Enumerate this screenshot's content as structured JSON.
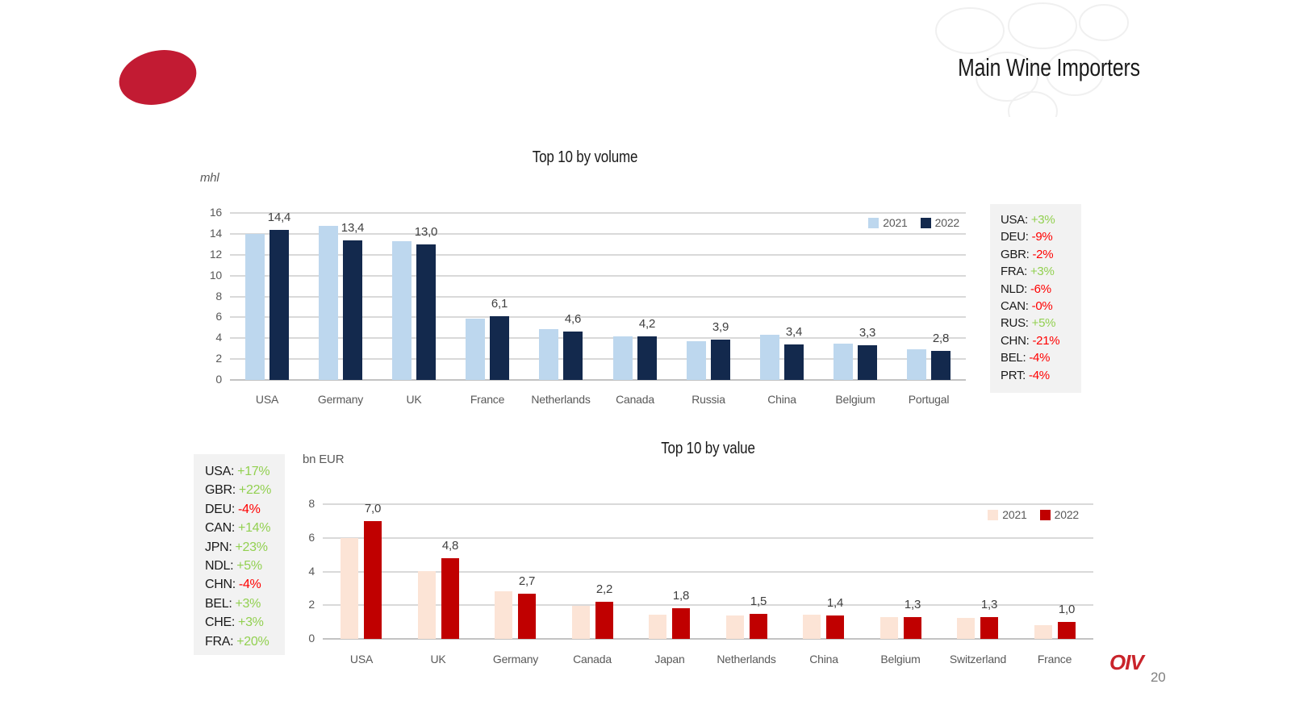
{
  "slide": {
    "title": "Main Wine Importers",
    "page_number": "20",
    "logo_text": "OIV"
  },
  "chart_data": [
    {
      "id": "volume",
      "type": "bar",
      "title": "Top 10 by volume",
      "unit_label": "mhl",
      "categories": [
        "USA",
        "Germany",
        "UK",
        "France",
        "Netherlands",
        "Canada",
        "Russia",
        "China",
        "Belgium",
        "Portugal"
      ],
      "series": [
        {
          "name": "2021",
          "color": "#bdd7ee",
          "values": [
            14.0,
            14.8,
            13.3,
            5.9,
            4.9,
            4.2,
            3.7,
            4.3,
            3.45,
            2.9
          ]
        },
        {
          "name": "2022",
          "color": "#13294d",
          "values": [
            14.4,
            13.4,
            13.0,
            6.1,
            4.6,
            4.2,
            3.9,
            3.4,
            3.3,
            2.8
          ]
        }
      ],
      "value_labels": [
        "14,4",
        "13,4",
        "13,0",
        "6,1",
        "4,6",
        "4,2",
        "3,9",
        "3,4",
        "3,3",
        "2,8"
      ],
      "ylim": [
        0,
        16
      ],
      "ytick_step": 2,
      "grid": true,
      "legend_position": "top-right"
    },
    {
      "id": "value",
      "type": "bar",
      "title": "Top 10 by value",
      "unit_label": "bn EUR",
      "categories": [
        "USA",
        "UK",
        "Germany",
        "Canada",
        "Japan",
        "Netherlands",
        "China",
        "Belgium",
        "Switzerland",
        "France"
      ],
      "series": [
        {
          "name": "2021",
          "color": "#fce4d6",
          "values": [
            6.0,
            4.0,
            2.85,
            1.95,
            1.45,
            1.4,
            1.45,
            1.3,
            1.25,
            0.8
          ]
        },
        {
          "name": "2022",
          "color": "#c00000",
          "values": [
            7.0,
            4.8,
            2.7,
            2.2,
            1.8,
            1.5,
            1.4,
            1.3,
            1.3,
            1.0
          ]
        }
      ],
      "value_labels": [
        "7,0",
        "4,8",
        "2,7",
        "2,2",
        "1,8",
        "1,5",
        "1,4",
        "1,3",
        "1,3",
        "1,0"
      ],
      "ylim": [
        0,
        8
      ],
      "ytick_step": 2,
      "grid": true,
      "legend_position": "top-right"
    }
  ],
  "panels": {
    "volume_changes": {
      "rows": [
        {
          "code": "USA:",
          "value": "+3%",
          "trend": "up"
        },
        {
          "code": "DEU:",
          "value": "-9%",
          "trend": "down"
        },
        {
          "code": "GBR:",
          "value": "-2%",
          "trend": "down"
        },
        {
          "code": "FRA:",
          "value": "+3%",
          "trend": "up"
        },
        {
          "code": "NLD:",
          "value": "-6%",
          "trend": "down"
        },
        {
          "code": "CAN:",
          "value": "-0%",
          "trend": "down"
        },
        {
          "code": "RUS:",
          "value": "+5%",
          "trend": "up"
        },
        {
          "code": "CHN:",
          "value": "-21%",
          "trend": "down"
        },
        {
          "code": "BEL:",
          "value": "-4%",
          "trend": "down"
        },
        {
          "code": "PRT:",
          "value": "-4%",
          "trend": "down"
        }
      ]
    },
    "value_changes": {
      "rows": [
        {
          "code": "USA:",
          "value": "+17%",
          "trend": "up"
        },
        {
          "code": "GBR:",
          "value": "+22%",
          "trend": "up"
        },
        {
          "code": "DEU:",
          "value": "-4%",
          "trend": "down"
        },
        {
          "code": "CAN:",
          "value": "+14%",
          "trend": "up"
        },
        {
          "code": "JPN:",
          "value": "+23%",
          "trend": "up"
        },
        {
          "code": "NDL:",
          "value": "+5%",
          "trend": "up"
        },
        {
          "code": "CHN:",
          "value": "-4%",
          "trend": "down"
        },
        {
          "code": "BEL:",
          "value": "+3%",
          "trend": "up"
        },
        {
          "code": "CHE:",
          "value": "+3%",
          "trend": "up"
        },
        {
          "code": "FRA:",
          "value": "+20%",
          "trend": "up"
        }
      ]
    }
  },
  "colors": {
    "accent_red": "#c21b33",
    "trend_up": "#92d050",
    "trend_down": "#ff0000",
    "gridline": "#d9d9d9",
    "axis_text": "#595959"
  }
}
